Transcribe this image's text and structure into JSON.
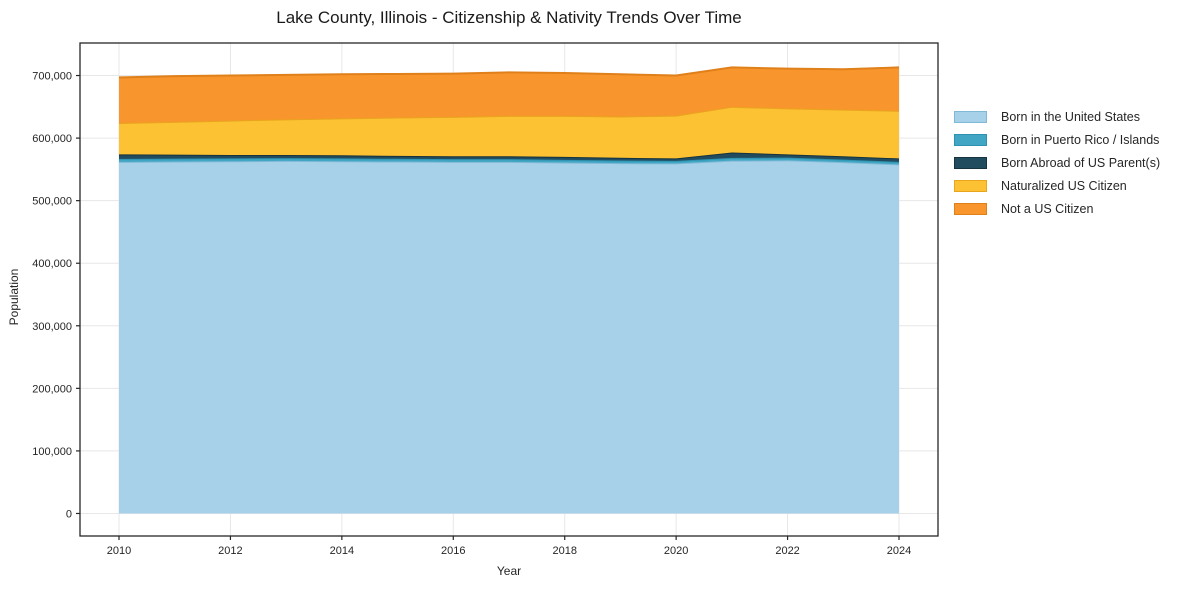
{
  "figure": {
    "title": "Lake County, Illinois - Citizenship & Nativity Trends Over Time",
    "background": "#ffffff"
  },
  "axes": {
    "xlabel": "Year",
    "ylabel": "Population",
    "x_ticks": [
      {
        "v": 2010,
        "label": "2010"
      },
      {
        "v": 2012,
        "label": "2012"
      },
      {
        "v": 2014,
        "label": "2014"
      },
      {
        "v": 2016,
        "label": "2016"
      },
      {
        "v": 2018,
        "label": "2018"
      },
      {
        "v": 2020,
        "label": "2020"
      },
      {
        "v": 2022,
        "label": "2022"
      },
      {
        "v": 2024,
        "label": "2024"
      }
    ],
    "y_ticks": [
      {
        "v": 0,
        "label": "0"
      },
      {
        "v": 100000,
        "label": "100,000"
      },
      {
        "v": 200000,
        "label": "200,000"
      },
      {
        "v": 300000,
        "label": "300,000"
      },
      {
        "v": 400000,
        "label": "400,000"
      },
      {
        "v": 500000,
        "label": "500,000"
      },
      {
        "v": 600000,
        "label": "600,000"
      },
      {
        "v": 700000,
        "label": "700,000"
      }
    ],
    "grid_color": "#e7e7e7",
    "spine_color": "#262626",
    "tick_color": "#262626"
  },
  "legend": {
    "entries": [
      {
        "label": "Born in the United States",
        "color": "#a7d1e8",
        "edge": "#7fb9d6"
      },
      {
        "label": "Born in Puerto Rico / Islands",
        "color": "#41a6c4",
        "edge": "#2e93b0"
      },
      {
        "label": "Born Abroad of US Parent(s)",
        "color": "#214c5f",
        "edge": "#16333f"
      },
      {
        "label": "Naturalized US Citizen",
        "color": "#fcc233",
        "edge": "#e9a51d"
      },
      {
        "label": "Not a US Citizen",
        "color": "#f8952c",
        "edge": "#e0801a"
      }
    ]
  },
  "chart_data": {
    "type": "area",
    "stacked": true,
    "title": "Lake County, Illinois - Citizenship & Nativity Trends Over Time",
    "xlabel": "Year",
    "ylabel": "Population",
    "grid": true,
    "legend_position": "right-outside",
    "xlim": [
      2009.3,
      2024.7
    ],
    "ylim": [
      -36000,
      752000
    ],
    "x": [
      2010,
      2011,
      2012,
      2013,
      2014,
      2015,
      2016,
      2017,
      2018,
      2019,
      2020,
      2021,
      2022,
      2023,
      2024
    ],
    "series": [
      {
        "name": "Born in the United States",
        "color": "#a7d1e8",
        "edge_color": "#7fb9d6",
        "values": [
          562000,
          562500,
          563000,
          563500,
          563000,
          562500,
          562000,
          562000,
          561000,
          560000,
          559500,
          564000,
          564500,
          561500,
          558000
        ]
      },
      {
        "name": "Born in Puerto Rico / Islands",
        "color": "#41a6c4",
        "edge_color": "#2e93b0",
        "values": [
          4800,
          4700,
          4600,
          4500,
          4500,
          4400,
          4300,
          4300,
          4200,
          4100,
          4000,
          4400,
          4200,
          4100,
          4000
        ]
      },
      {
        "name": "Born Abroad of US Parent(s)",
        "color": "#214c5f",
        "edge_color": "#16333f",
        "values": [
          7200,
          6300,
          5400,
          5000,
          5000,
          4600,
          4700,
          4700,
          4800,
          4400,
          4000,
          8600,
          5300,
          5400,
          5500
        ]
      },
      {
        "name": "Naturalized US Citizen",
        "color": "#fcc233",
        "edge_color": "#e9a51d",
        "values": [
          50000,
          52500,
          55000,
          57000,
          59000,
          61500,
          63000,
          64500,
          65500,
          66000,
          68500,
          73000,
          73500,
          74500,
          76000
        ]
      },
      {
        "name": "Not a US Citizen",
        "color": "#f8952c",
        "edge_color": "#e0801a",
        "values": [
          73000,
          73000,
          72000,
          71000,
          70500,
          69500,
          69000,
          69500,
          68500,
          67500,
          64000,
          63000,
          63500,
          64500,
          69500
        ]
      }
    ]
  }
}
